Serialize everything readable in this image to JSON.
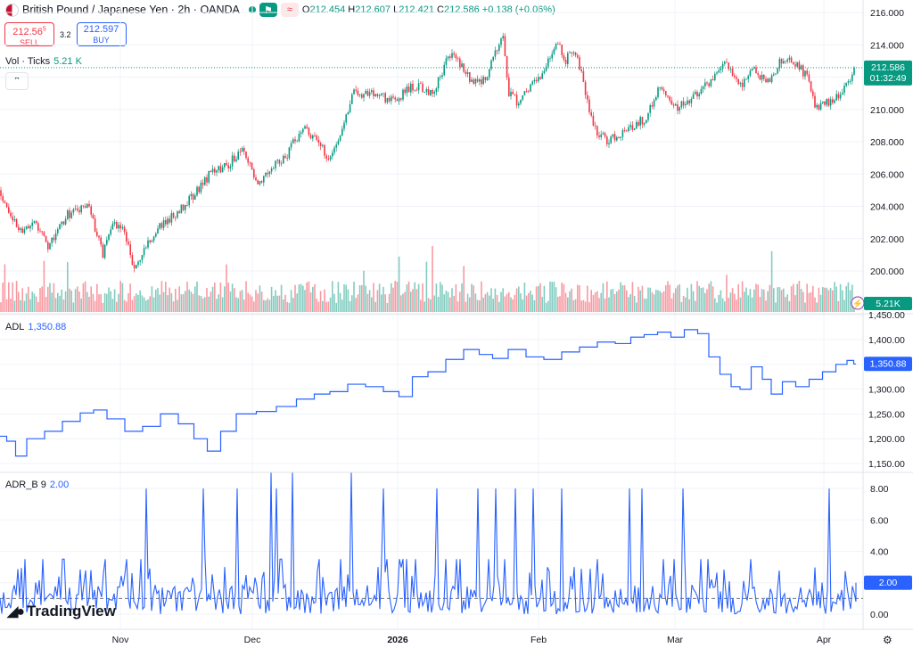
{
  "header": {
    "title": "British Pound / Japanese Yen · 2h · OANDA",
    "ohlc": [
      {
        "k": "O",
        "v": "212.454"
      },
      {
        "k": "H",
        "v": "212.607"
      },
      {
        "k": "L",
        "v": "212.421"
      },
      {
        "k": "C",
        "v": "212.586"
      },
      {
        "k": "",
        "v": "+0.138 (+0.06%)"
      }
    ],
    "sell_price": "212.56",
    "sell_price_sup": "5",
    "sell_label": "SELL",
    "spread": "3.2",
    "buy_price": "212.597",
    "buy_label": "BUY"
  },
  "vol_label": "Vol · Ticks",
  "vol_value": "5.21 K",
  "adl_label": "ADL",
  "adl_value": "1,350.88",
  "adrb_label": "ADR_B 9",
  "adrb_value": "2.00",
  "logo_text": "TradingView",
  "price_badge": {
    "price": "212.586",
    "countdown": "01:32:49"
  },
  "vol_badge": "5.21K",
  "colors": {
    "up": "#089981",
    "down": "#f23645",
    "line": "#2962ff",
    "text": "#131722"
  },
  "chart_data": [
    {
      "type": "candlestick",
      "title": "British Pound / Japanese Yen · 2h · OANDA",
      "ylim": [
        199,
        216.5
      ],
      "y_ticks": [
        "216.000",
        "214.000",
        "212.000",
        "210.000",
        "208.000",
        "206.000",
        "204.000",
        "202.000",
        "200.000"
      ],
      "x_ticks": [
        "Nov",
        "Dec",
        "2026",
        "Feb",
        "Mar",
        "Apr"
      ],
      "last_price": 212.586,
      "close_path": [
        {
          "x": 0,
          "y": 205.0
        },
        {
          "x": 20,
          "y": 202.5
        },
        {
          "x": 40,
          "y": 203.0
        },
        {
          "x": 55,
          "y": 201.5
        },
        {
          "x": 75,
          "y": 203.5
        },
        {
          "x": 100,
          "y": 204.0
        },
        {
          "x": 115,
          "y": 201.0
        },
        {
          "x": 125,
          "y": 203.0
        },
        {
          "x": 140,
          "y": 202.5
        },
        {
          "x": 150,
          "y": 200.0
        },
        {
          "x": 165,
          "y": 201.5
        },
        {
          "x": 175,
          "y": 202.5
        },
        {
          "x": 195,
          "y": 203.5
        },
        {
          "x": 215,
          "y": 204.5
        },
        {
          "x": 235,
          "y": 206.0
        },
        {
          "x": 255,
          "y": 206.5
        },
        {
          "x": 270,
          "y": 207.5
        },
        {
          "x": 290,
          "y": 205.5
        },
        {
          "x": 305,
          "y": 206.5
        },
        {
          "x": 320,
          "y": 207.0
        },
        {
          "x": 340,
          "y": 209.0
        },
        {
          "x": 355,
          "y": 208.0
        },
        {
          "x": 370,
          "y": 207.0
        },
        {
          "x": 385,
          "y": 209.0
        },
        {
          "x": 395,
          "y": 211.0
        },
        {
          "x": 420,
          "y": 211.0
        },
        {
          "x": 440,
          "y": 210.5
        },
        {
          "x": 465,
          "y": 211.5
        },
        {
          "x": 485,
          "y": 211.0
        },
        {
          "x": 505,
          "y": 213.5
        },
        {
          "x": 520,
          "y": 212.5
        },
        {
          "x": 530,
          "y": 211.5
        },
        {
          "x": 545,
          "y": 212.0
        },
        {
          "x": 555,
          "y": 213.5
        },
        {
          "x": 565,
          "y": 214.5
        },
        {
          "x": 570,
          "y": 211.0
        },
        {
          "x": 580,
          "y": 210.5
        },
        {
          "x": 590,
          "y": 211.0
        },
        {
          "x": 605,
          "y": 212.0
        },
        {
          "x": 615,
          "y": 213.0
        },
        {
          "x": 625,
          "y": 214.5
        },
        {
          "x": 632,
          "y": 213.0
        },
        {
          "x": 645,
          "y": 213.5
        },
        {
          "x": 655,
          "y": 211.5
        },
        {
          "x": 665,
          "y": 209.0
        },
        {
          "x": 680,
          "y": 208.0
        },
        {
          "x": 695,
          "y": 208.5
        },
        {
          "x": 710,
          "y": 209.0
        },
        {
          "x": 725,
          "y": 209.5
        },
        {
          "x": 740,
          "y": 211.5
        },
        {
          "x": 755,
          "y": 210.0
        },
        {
          "x": 770,
          "y": 210.5
        },
        {
          "x": 785,
          "y": 211.0
        },
        {
          "x": 800,
          "y": 212.0
        },
        {
          "x": 815,
          "y": 213.0
        },
        {
          "x": 830,
          "y": 211.5
        },
        {
          "x": 845,
          "y": 212.5
        },
        {
          "x": 860,
          "y": 211.5
        },
        {
          "x": 875,
          "y": 213.0
        },
        {
          "x": 890,
          "y": 213.0
        },
        {
          "x": 905,
          "y": 212.0
        },
        {
          "x": 915,
          "y": 210.0
        },
        {
          "x": 930,
          "y": 210.5
        },
        {
          "x": 945,
          "y": 211.0
        },
        {
          "x": 960,
          "y": 212.586
        }
      ]
    },
    {
      "type": "bar",
      "title": "Vol · Ticks",
      "last_value": "5.21 K",
      "y_ticks": []
    },
    {
      "type": "line",
      "title": "ADL",
      "ylim": [
        1140,
        1460
      ],
      "y_ticks": [
        "1,450.00",
        "1,400.00",
        "1,350.00",
        "1,300.00",
        "1,250.00",
        "1,200.00",
        "1,150.00"
      ],
      "last_value": 1350.88,
      "points": [
        {
          "x": 0,
          "y": 1205
        },
        {
          "x": 15,
          "y": 1195
        },
        {
          "x": 20,
          "y": 1165
        },
        {
          "x": 40,
          "y": 1200
        },
        {
          "x": 60,
          "y": 1215
        },
        {
          "x": 80,
          "y": 1235
        },
        {
          "x": 100,
          "y": 1252
        },
        {
          "x": 110,
          "y": 1258
        },
        {
          "x": 130,
          "y": 1240
        },
        {
          "x": 150,
          "y": 1215
        },
        {
          "x": 170,
          "y": 1225
        },
        {
          "x": 190,
          "y": 1250
        },
        {
          "x": 210,
          "y": 1230
        },
        {
          "x": 225,
          "y": 1200
        },
        {
          "x": 240,
          "y": 1175
        },
        {
          "x": 255,
          "y": 1215
        },
        {
          "x": 275,
          "y": 1250
        },
        {
          "x": 300,
          "y": 1255
        },
        {
          "x": 320,
          "y": 1265
        },
        {
          "x": 345,
          "y": 1280
        },
        {
          "x": 360,
          "y": 1290
        },
        {
          "x": 380,
          "y": 1295
        },
        {
          "x": 400,
          "y": 1310
        },
        {
          "x": 420,
          "y": 1305
        },
        {
          "x": 440,
          "y": 1295
        },
        {
          "x": 455,
          "y": 1285
        },
        {
          "x": 470,
          "y": 1325
        },
        {
          "x": 490,
          "y": 1335
        },
        {
          "x": 510,
          "y": 1360
        },
        {
          "x": 530,
          "y": 1380
        },
        {
          "x": 545,
          "y": 1370
        },
        {
          "x": 560,
          "y": 1362
        },
        {
          "x": 580,
          "y": 1380
        },
        {
          "x": 600,
          "y": 1365
        },
        {
          "x": 620,
          "y": 1360
        },
        {
          "x": 640,
          "y": 1375
        },
        {
          "x": 660,
          "y": 1385
        },
        {
          "x": 680,
          "y": 1395
        },
        {
          "x": 700,
          "y": 1392
        },
        {
          "x": 715,
          "y": 1405
        },
        {
          "x": 730,
          "y": 1410
        },
        {
          "x": 745,
          "y": 1415
        },
        {
          "x": 760,
          "y": 1405
        },
        {
          "x": 775,
          "y": 1420
        },
        {
          "x": 790,
          "y": 1412
        },
        {
          "x": 800,
          "y": 1365
        },
        {
          "x": 815,
          "y": 1330
        },
        {
          "x": 825,
          "y": 1305
        },
        {
          "x": 835,
          "y": 1300
        },
        {
          "x": 850,
          "y": 1345
        },
        {
          "x": 860,
          "y": 1320
        },
        {
          "x": 870,
          "y": 1290
        },
        {
          "x": 885,
          "y": 1315
        },
        {
          "x": 900,
          "y": 1305
        },
        {
          "x": 915,
          "y": 1320
        },
        {
          "x": 930,
          "y": 1335
        },
        {
          "x": 945,
          "y": 1350
        },
        {
          "x": 955,
          "y": 1358
        },
        {
          "x": 960,
          "y": 1350.88
        }
      ]
    },
    {
      "type": "line",
      "title": "ADR_B 9",
      "ylim": [
        -0.4,
        9.3
      ],
      "y_ticks": [
        "8.00",
        "6.00",
        "4.00",
        "2.00",
        "0.00"
      ],
      "last_value": 2.0,
      "reference_line": 1.0,
      "spikes": [
        {
          "x": 163,
          "y": 8
        },
        {
          "x": 228,
          "y": 8
        },
        {
          "x": 266,
          "y": 8
        },
        {
          "x": 303,
          "y": 9
        },
        {
          "x": 310,
          "y": 8
        },
        {
          "x": 327,
          "y": 9
        },
        {
          "x": 393,
          "y": 9
        },
        {
          "x": 430,
          "y": 8
        },
        {
          "x": 490,
          "y": 8
        },
        {
          "x": 535,
          "y": 8
        },
        {
          "x": 555,
          "y": 8
        },
        {
          "x": 578,
          "y": 8
        },
        {
          "x": 598,
          "y": 8
        },
        {
          "x": 630,
          "y": 8
        },
        {
          "x": 705,
          "y": 8
        },
        {
          "x": 720,
          "y": 8
        },
        {
          "x": 765,
          "y": 8
        },
        {
          "x": 930,
          "y": 8
        }
      ]
    }
  ]
}
